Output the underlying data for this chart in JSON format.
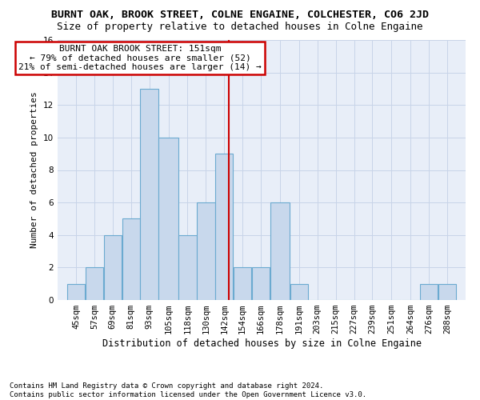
{
  "title": "BURNT OAK, BROOK STREET, COLNE ENGAINE, COLCHESTER, CO6 2JD",
  "subtitle": "Size of property relative to detached houses in Colne Engaine",
  "xlabel": "Distribution of detached houses by size in Colne Engaine",
  "ylabel": "Number of detached properties",
  "footnote1": "Contains HM Land Registry data © Crown copyright and database right 2024.",
  "footnote2": "Contains public sector information licensed under the Open Government Licence v3.0.",
  "bin_labels": [
    "45sqm",
    "57sqm",
    "69sqm",
    "81sqm",
    "93sqm",
    "105sqm",
    "118sqm",
    "130sqm",
    "142sqm",
    "154sqm",
    "166sqm",
    "178sqm",
    "191sqm",
    "203sqm",
    "215sqm",
    "227sqm",
    "239sqm",
    "251sqm",
    "264sqm",
    "276sqm",
    "288sqm"
  ],
  "values": [
    1,
    2,
    4,
    5,
    13,
    10,
    4,
    6,
    9,
    2,
    2,
    6,
    1,
    0,
    0,
    0,
    0,
    0,
    0,
    1,
    1
  ],
  "bin_edges": [
    45,
    57,
    69,
    81,
    93,
    105,
    118,
    130,
    142,
    154,
    166,
    178,
    191,
    203,
    215,
    227,
    239,
    251,
    264,
    276,
    288,
    300
  ],
  "bar_color": "#c8d8ec",
  "bar_edge_color": "#6baad0",
  "vline_x": 151,
  "vline_color": "#cc0000",
  "annotation_line1": "BURNT OAK BROOK STREET: 151sqm",
  "annotation_line2": "← 79% of detached houses are smaller (52)",
  "annotation_line3": "21% of semi-detached houses are larger (14) →",
  "annotation_box_color": "white",
  "annotation_box_edge": "#cc0000",
  "ylim": [
    0,
    16
  ],
  "yticks": [
    0,
    2,
    4,
    6,
    8,
    10,
    12,
    14,
    16
  ],
  "grid_color": "#c8d4e8",
  "background_color": "#e8eef8",
  "title_fontsize": 9.5,
  "subtitle_fontsize": 9,
  "xlabel_fontsize": 8.5,
  "ylabel_fontsize": 8,
  "tick_fontsize": 7.5,
  "annot_fontsize": 8,
  "footnote_fontsize": 6.5
}
